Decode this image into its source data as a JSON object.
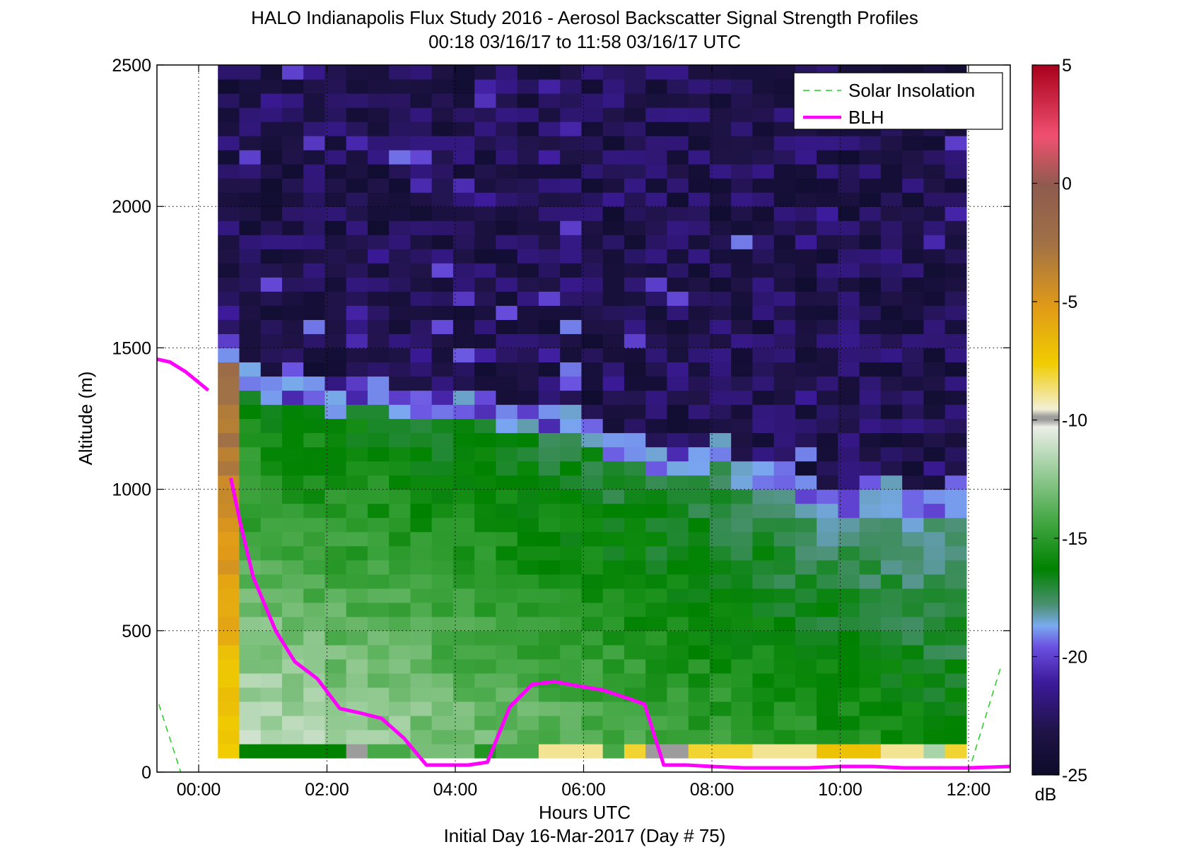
{
  "figure": {
    "title_line1": "HALO Indianapolis Flux Study 2016 - Aerosol Backscatter Signal Strength Profiles",
    "title_line2": "00:18 03/16/17 to 11:58 03/16/17  UTC"
  },
  "chart_data": {
    "type": "heatmap",
    "title": "HALO Indianapolis Flux Study 2016 - Aerosol Backscatter Signal Strength Profiles",
    "subtitle": "00:18 03/16/17 to 11:58 03/16/17  UTC",
    "xlabel": "Hours UTC",
    "xlabel2": "Initial Day 16-Mar-2017 (Day # 75)",
    "ylabel": "Altitude (m)",
    "xlim": [
      -0.65,
      12.65
    ],
    "ylim": [
      0,
      2500
    ],
    "x_ticks": [
      0,
      2,
      4,
      6,
      8,
      10,
      12
    ],
    "x_tick_labels": [
      "00:00",
      "02:00",
      "04:00",
      "06:00",
      "08:00",
      "10:00",
      "12:00"
    ],
    "y_ticks": [
      0,
      500,
      1000,
      1500,
      2000,
      2500
    ],
    "y_tick_labels": [
      "0",
      "500",
      "1000",
      "1500",
      "2000",
      "2500"
    ],
    "grid": true,
    "legend_position": "top-right",
    "colorbar": {
      "label": "dB",
      "min": -25,
      "max": 5,
      "ticks": [
        5,
        0,
        -5,
        -10,
        -15,
        -20,
        -25
      ],
      "tick_labels": [
        "5",
        "0",
        "-5",
        "-10",
        "-15",
        "-20",
        "-25"
      ]
    },
    "heatmap": {
      "x_start": 0.3,
      "x_end": 12.0,
      "cell_hours": 0.3333,
      "y_start": 50,
      "y_end": 2500,
      "cell_height_m": 50,
      "column_hours": [
        0.3,
        0.63,
        0.97,
        1.3,
        1.63,
        1.97,
        2.3,
        2.63,
        2.97,
        3.3,
        3.63,
        3.97,
        4.3,
        4.63,
        4.97,
        5.3,
        5.63,
        5.97,
        6.3,
        6.63,
        6.97,
        7.3,
        7.63,
        7.97,
        8.3,
        8.63,
        8.97,
        9.3,
        9.63,
        9.97,
        10.3,
        10.63,
        10.97,
        11.3,
        11.63
      ],
      "aerosol_top_m": [
        1500,
        1400,
        1350,
        1320,
        1320,
        1300,
        1330,
        1330,
        1300,
        1300,
        1300,
        1300,
        1270,
        1250,
        1220,
        1230,
        1240,
        1190,
        1150,
        1120,
        1100,
        1080,
        1100,
        1120,
        1050,
        1030,
        1020,
        1000,
        960,
        960,
        980,
        980,
        950,
        920,
        1000
      ],
      "near_surface_db": [
        -7.5,
        -16,
        -16,
        -16,
        -16,
        -16,
        -10,
        -14,
        -14,
        -13,
        -13,
        -13,
        -15,
        -14,
        -14,
        -9,
        -9,
        -9,
        -14,
        -8,
        -10,
        -10,
        -8,
        -8,
        -8,
        -9,
        -9,
        -9,
        -7,
        -7,
        -7,
        -9,
        -9,
        -12,
        -8
      ]
    },
    "series": [
      {
        "name": "Solar Insolation",
        "style": "dashed",
        "color": "#22cc22",
        "segments": [
          [
            [
              -0.62,
              240
            ],
            [
              -0.28,
              0
            ]
          ],
          [
            [
              12.0,
              0
            ],
            [
              12.5,
              370
            ]
          ]
        ]
      },
      {
        "name": "BLH",
        "style": "solid",
        "color": "#ff00ff",
        "segments": [
          [
            [
              -0.65,
              1460
            ],
            [
              -0.45,
              1450
            ],
            [
              -0.2,
              1415
            ],
            [
              0.15,
              1350
            ]
          ],
          [
            [
              0.5,
              1040
            ],
            [
              0.65,
              880
            ],
            [
              0.85,
              690
            ],
            [
              1.2,
              500
            ],
            [
              1.5,
              390
            ],
            [
              1.85,
              330
            ],
            [
              2.2,
              225
            ],
            [
              2.5,
              210
            ],
            [
              2.85,
              190
            ],
            [
              3.2,
              120
            ],
            [
              3.55,
              25
            ],
            [
              3.9,
              25
            ],
            [
              4.2,
              25
            ],
            [
              4.5,
              35
            ],
            [
              4.85,
              230
            ],
            [
              5.2,
              310
            ],
            [
              5.55,
              320
            ],
            [
              5.9,
              305
            ],
            [
              6.3,
              290
            ],
            [
              6.7,
              260
            ],
            [
              6.95,
              240
            ],
            [
              7.25,
              25
            ],
            [
              7.6,
              25
            ],
            [
              8.0,
              20
            ],
            [
              8.5,
              15
            ],
            [
              9.0,
              15
            ],
            [
              9.5,
              15
            ],
            [
              10.0,
              20
            ],
            [
              10.5,
              20
            ],
            [
              11.0,
              15
            ],
            [
              11.5,
              15
            ],
            [
              12.0,
              15
            ],
            [
              12.65,
              20
            ]
          ]
        ]
      }
    ]
  },
  "legend": {
    "items": [
      {
        "label": "Solar Insolation",
        "color": "#22cc22",
        "style": "dashed"
      },
      {
        "label": "BLH",
        "color": "#ff00ff",
        "style": "solid"
      }
    ]
  }
}
